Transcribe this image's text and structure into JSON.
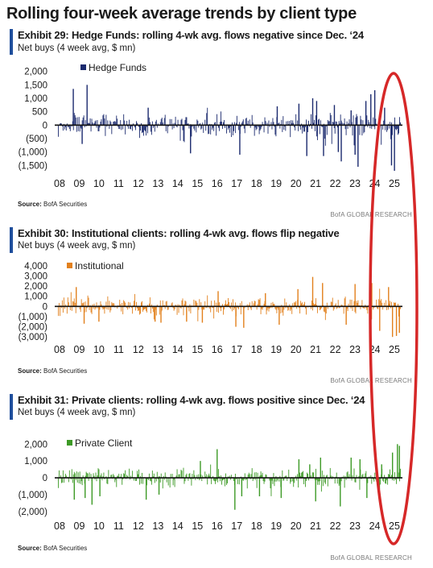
{
  "page_title": "Rolling four-week average trends by client type",
  "source_label": "Source:",
  "source_value": "BofA Securities",
  "credit": "BofA GLOBAL RESEARCH",
  "colors": {
    "hedge": "#1b2a6e",
    "institutional": "#e2801c",
    "private": "#3d9a26",
    "accent_bar": "#1f4e9c",
    "highlight": "#d62828"
  },
  "exhibits": [
    {
      "title": "Exhibit 29: Hedge Funds: rolling 4-wk avg. flows negative since Dec. ‘24",
      "subtitle": "Net buys (4 week avg, $ mn)"
    },
    {
      "title": "Exhibit 30: Institutional clients: rolling 4-wk avg. flows flip negative",
      "subtitle": "Net buys (4 week avg, $ mn)"
    },
    {
      "title": "Exhibit 31: Private clients: rolling 4-wk avg. flows positive since Dec. ‘24",
      "subtitle": "Net buys (4 week avg, $ mn)"
    }
  ],
  "chart_data": [
    {
      "type": "bar",
      "series": [
        {
          "name": "Hedge Funds"
        }
      ],
      "x_tick_labels": [
        "08",
        "09",
        "10",
        "11",
        "12",
        "13",
        "14",
        "15",
        "16",
        "17",
        "18",
        "19",
        "20",
        "21",
        "22",
        "23",
        "24",
        "25"
      ],
      "y_tick_labels": [
        "2,000",
        "1,500",
        "1,000",
        "500",
        "0",
        "(500)",
        "(1,000)",
        "(1,500)"
      ],
      "ylim": [
        -1700,
        2200
      ],
      "yticks": [
        2000,
        1500,
        1000,
        500,
        0,
        -500,
        -1000,
        -1500
      ],
      "x_range": [
        2008.0,
        2025.4
      ],
      "spikes": [
        {
          "x": 2008.75,
          "y": 1350
        },
        {
          "x": 2009.45,
          "y": 1500
        },
        {
          "x": 2009.2,
          "y": -700
        },
        {
          "x": 2012.55,
          "y": 650
        },
        {
          "x": 2014.7,
          "y": -1050
        },
        {
          "x": 2017.2,
          "y": -1100
        },
        {
          "x": 2019.1,
          "y": 700
        },
        {
          "x": 2020.2,
          "y": 800
        },
        {
          "x": 2020.6,
          "y": -1150
        },
        {
          "x": 2020.9,
          "y": 1000
        },
        {
          "x": 2021.1,
          "y": 900
        },
        {
          "x": 2021.45,
          "y": -1150
        },
        {
          "x": 2022.0,
          "y": 750
        },
        {
          "x": 2022.2,
          "y": -1000
        },
        {
          "x": 2022.35,
          "y": -1350
        },
        {
          "x": 2022.85,
          "y": 550
        },
        {
          "x": 2023.05,
          "y": -1100
        },
        {
          "x": 2023.2,
          "y": -1550
        },
        {
          "x": 2023.6,
          "y": 900
        },
        {
          "x": 2023.85,
          "y": 1150
        },
        {
          "x": 2024.05,
          "y": 1300
        },
        {
          "x": 2024.55,
          "y": 650
        },
        {
          "x": 2024.9,
          "y": -1500
        },
        {
          "x": 2025.05,
          "y": -1700
        }
      ],
      "amplitude": 420
    },
    {
      "type": "bar",
      "series": [
        {
          "name": "Institutional"
        }
      ],
      "x_tick_labels": [
        "08",
        "09",
        "10",
        "11",
        "12",
        "13",
        "14",
        "15",
        "16",
        "17",
        "18",
        "19",
        "20",
        "21",
        "22",
        "23",
        "24",
        "25"
      ],
      "y_tick_labels": [
        "4,000",
        "3,000",
        "2,000",
        "1,000",
        "0",
        "(1,000)",
        "(2,000)",
        "(3,000)"
      ],
      "ylim": [
        -3300,
        4300
      ],
      "yticks": [
        4000,
        3000,
        2000,
        1000,
        0,
        -1000,
        -2000,
        -3000
      ],
      "x_range": [
        2008.0,
        2025.4
      ],
      "spikes": [
        {
          "x": 2008.9,
          "y": 1900
        },
        {
          "x": 2009.3,
          "y": -1700
        },
        {
          "x": 2010.05,
          "y": -1500
        },
        {
          "x": 2012.9,
          "y": -1500
        },
        {
          "x": 2013.2,
          "y": -1600
        },
        {
          "x": 2014.5,
          "y": -1500
        },
        {
          "x": 2015.3,
          "y": -1600
        },
        {
          "x": 2016.1,
          "y": 1500
        },
        {
          "x": 2017.0,
          "y": -2000
        },
        {
          "x": 2017.4,
          "y": -2100
        },
        {
          "x": 2018.5,
          "y": 1300
        },
        {
          "x": 2019.2,
          "y": -1800
        },
        {
          "x": 2020.15,
          "y": 1700
        },
        {
          "x": 2020.9,
          "y": 2900
        },
        {
          "x": 2021.4,
          "y": 2300
        },
        {
          "x": 2022.6,
          "y": -1800
        },
        {
          "x": 2023.05,
          "y": 2200
        },
        {
          "x": 2023.9,
          "y": 2300
        },
        {
          "x": 2024.3,
          "y": -2400
        },
        {
          "x": 2024.75,
          "y": 1900
        },
        {
          "x": 2024.95,
          "y": -3000
        },
        {
          "x": 2025.15,
          "y": -2900
        },
        {
          "x": 2025.3,
          "y": -2600
        }
      ],
      "amplitude": 850
    },
    {
      "type": "bar",
      "series": [
        {
          "name": "Private Client"
        }
      ],
      "x_tick_labels": [
        "08",
        "09",
        "10",
        "11",
        "12",
        "13",
        "14",
        "15",
        "16",
        "17",
        "18",
        "19",
        "20",
        "21",
        "22",
        "23",
        "24",
        "25"
      ],
      "y_tick_labels": [
        "2,000",
        "1,000",
        "0",
        "(1,000)",
        "(2,000)"
      ],
      "ylim": [
        -2200,
        2300
      ],
      "yticks": [
        2000,
        1000,
        0,
        -1000,
        -2000
      ],
      "x_range": [
        2008.0,
        2025.4
      ],
      "spikes": [
        {
          "x": 2008.8,
          "y": -1300
        },
        {
          "x": 2009.35,
          "y": -1200
        },
        {
          "x": 2009.7,
          "y": -1600
        },
        {
          "x": 2010.1,
          "y": -1100
        },
        {
          "x": 2012.45,
          "y": -1300
        },
        {
          "x": 2013.1,
          "y": -1000
        },
        {
          "x": 2015.2,
          "y": 1000
        },
        {
          "x": 2016.05,
          "y": 1700
        },
        {
          "x": 2016.95,
          "y": -1900
        },
        {
          "x": 2017.3,
          "y": -1100
        },
        {
          "x": 2018.2,
          "y": -1100
        },
        {
          "x": 2019.3,
          "y": -1200
        },
        {
          "x": 2020.2,
          "y": 1100
        },
        {
          "x": 2020.75,
          "y": 800
        },
        {
          "x": 2021.05,
          "y": -1400
        },
        {
          "x": 2021.3,
          "y": 1200
        },
        {
          "x": 2022.3,
          "y": -1700
        },
        {
          "x": 2022.85,
          "y": 1200
        },
        {
          "x": 2023.3,
          "y": 1100
        },
        {
          "x": 2023.65,
          "y": -1200
        },
        {
          "x": 2024.4,
          "y": 800
        },
        {
          "x": 2024.95,
          "y": 1500
        },
        {
          "x": 2025.2,
          "y": 2000
        },
        {
          "x": 2025.3,
          "y": 1900
        }
      ],
      "amplitude": 520
    }
  ]
}
